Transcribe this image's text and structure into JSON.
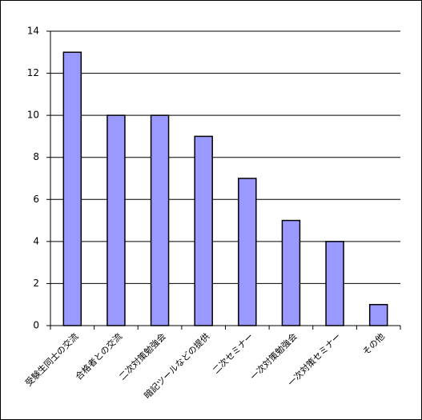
{
  "chart_data": {
    "type": "bar",
    "categories": [
      "受験生同士の交流",
      "合格者との交流",
      "二次対策勉強会",
      "暗記ツールなどの提供",
      "二次セミナー",
      "一次対策勉強会",
      "一次対策セミナー",
      "その他"
    ],
    "values": [
      13,
      10,
      10,
      9,
      7,
      5,
      4,
      1
    ],
    "color": "#9999ff",
    "ylim": [
      0,
      14
    ],
    "yticks": [
      0,
      2,
      4,
      6,
      8,
      10,
      12,
      14
    ],
    "grid": true
  }
}
